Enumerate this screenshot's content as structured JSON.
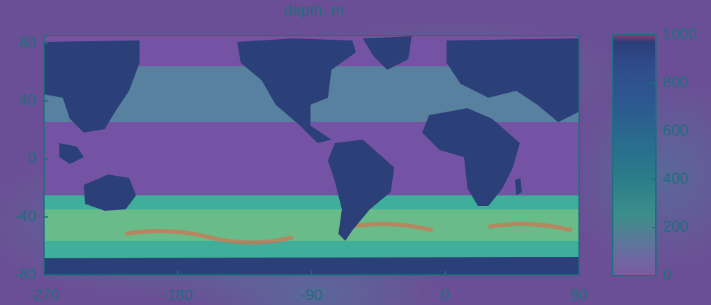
{
  "chart_data": {
    "type": "heatmap",
    "title": "depth, m",
    "map": {
      "xlim": [
        -270,
        90
      ],
      "ylim": [
        -80,
        85
      ],
      "xticks": [
        -270,
        -180,
        -90,
        0,
        90
      ],
      "xtick_labels": [
        "-270",
        "-180",
        "-90",
        "0",
        "90"
      ],
      "yticks": [
        80,
        40,
        0,
        -40,
        -80
      ],
      "ytick_labels": [
        "80",
        "40",
        "0",
        "-40",
        "-80"
      ]
    },
    "colorbar": {
      "range": [
        0,
        1000
      ],
      "ticks": [
        1000,
        800,
        600,
        400,
        200,
        0
      ],
      "tick_labels": [
        "1000",
        "800",
        "600",
        "400",
        "200",
        "0"
      ],
      "colors": [
        "#2a3e78",
        "#2f4b8a",
        "#2d5a90",
        "#2a6c8e",
        "#2b7d8a",
        "#3c8e8a",
        "#6c6aa0",
        "#7a5aa0"
      ]
    },
    "colors": {
      "background": "#6b4f96",
      "ocean": "#7553a4",
      "land": "#2b3f78",
      "band": "#3fae9b",
      "highlight": "#b7d468",
      "hotspot": "#d4704e",
      "frame": "#1d6f7c",
      "text": "#1d6f7c"
    }
  }
}
